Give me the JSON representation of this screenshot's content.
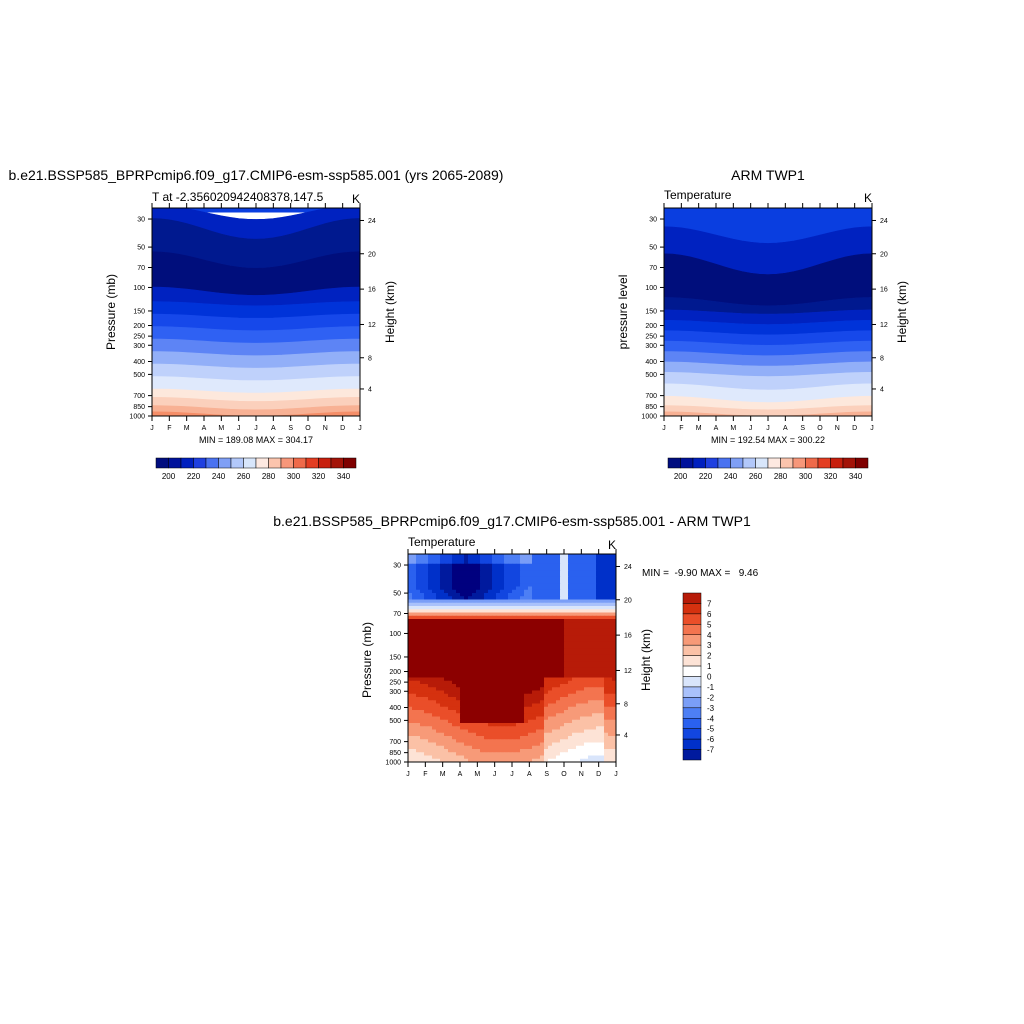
{
  "colors": {
    "model_bands": [
      "#000d7f",
      "#00129b",
      "#0020bf",
      "#1f40e0",
      "#4a72f0",
      "#7f9ff5",
      "#b2c8fa",
      "#d8e6fb",
      "#fde9e1",
      "#fbc4ad",
      "#f7977a",
      "#ef6a4a",
      "#e33d22",
      "#c71f0d",
      "#a31308",
      "#7f0000"
    ],
    "diff_bands": [
      "#00007f",
      "#001a9e",
      "#0030c9",
      "#1246e0",
      "#2a61ef",
      "#4d7ff5",
      "#7a9ef7",
      "#a9c1fb",
      "#d9e5fb",
      "#ffffff",
      "#fde3d6",
      "#fbc1a6",
      "#f79a78",
      "#f3744f",
      "#ea4e29",
      "#d5310f",
      "#b71b08",
      "#8c0000"
    ]
  },
  "chart_data": [
    {
      "type": "heatmap",
      "title": "b.e21.BSSP585_BPRPcmip6.f09_g17.CMIP6-esm-ssp585.001 (yrs 2065-2089)",
      "subtitle_left": "T at -2.356020942408378,147.5",
      "subtitle_right": "K",
      "ylabel": "Pressure (mb)",
      "ylabel_right": "Height (km)",
      "x_ticks": [
        "J",
        "F",
        "M",
        "A",
        "M",
        "J",
        "J",
        "A",
        "S",
        "O",
        "N",
        "D",
        "J"
      ],
      "y_ticks": [
        "30",
        "50",
        "70",
        "100",
        "150",
        "200",
        "250",
        "300",
        "400",
        "500",
        "700",
        "850",
        "1000"
      ],
      "y_right_ticks": [
        "24",
        "20",
        "16",
        "12",
        "8",
        "4"
      ],
      "stats": "MIN = 189.08 MAX = 304.17",
      "colorbar_labels": [
        "200",
        "220",
        "240",
        "260",
        "280",
        "300",
        "320",
        "340"
      ],
      "contour_levels": [
        195,
        200,
        210,
        220,
        230,
        240,
        250,
        260,
        270,
        280,
        290,
        300
      ],
      "annual_profile": {
        "pressure_mb": [
          1000,
          850,
          700,
          500,
          400,
          300,
          250,
          200,
          150,
          100,
          70,
          50,
          30
        ],
        "temperature_K": [
          301,
          296,
          287,
          270,
          260,
          244,
          235,
          222,
          208,
          193,
          195,
          205,
          218
        ]
      }
    },
    {
      "type": "heatmap",
      "title": "ARM TWP1",
      "subtitle_left": "Temperature",
      "subtitle_right": "K",
      "ylabel": "pressure level",
      "ylabel_right": "Height (km)",
      "x_ticks": [
        "J",
        "F",
        "M",
        "A",
        "M",
        "J",
        "J",
        "A",
        "S",
        "O",
        "N",
        "D",
        "J"
      ],
      "y_ticks": [
        "30",
        "50",
        "70",
        "100",
        "150",
        "200",
        "250",
        "300",
        "400",
        "500",
        "700",
        "850",
        "1000"
      ],
      "y_right_ticks": [
        "24",
        "20",
        "16",
        "12",
        "8",
        "4"
      ],
      "stats": "MIN = 192.54 MAX = 300.22",
      "colorbar_labels": [
        "200",
        "220",
        "240",
        "260",
        "280",
        "300",
        "320",
        "340"
      ],
      "contour_levels": [
        195,
        200,
        210,
        220,
        230,
        240,
        250,
        260,
        270,
        280,
        290,
        300
      ],
      "annual_profile": {
        "pressure_mb": [
          1000,
          850,
          700,
          500,
          400,
          300,
          250,
          200,
          150,
          100,
          70,
          50,
          30
        ],
        "temperature_K": [
          299,
          293,
          284,
          267,
          255,
          240,
          230,
          218,
          205,
          194,
          196,
          205,
          213
        ]
      }
    },
    {
      "type": "heatmap",
      "title": "b.e21.BSSP585_BPRPcmip6.f09_g17.CMIP6-esm-ssp585.001 - ARM TWP1",
      "subtitle_left": "Temperature",
      "subtitle_right": "K",
      "ylabel": "Pressure (mb)",
      "ylabel_right": "Height (km)",
      "x_ticks": [
        "J",
        "F",
        "M",
        "A",
        "M",
        "J",
        "J",
        "A",
        "S",
        "O",
        "N",
        "D",
        "J"
      ],
      "y_ticks": [
        "30",
        "50",
        "70",
        "100",
        "150",
        "200",
        "250",
        "300",
        "400",
        "500",
        "700",
        "850",
        "1000"
      ],
      "y_right_ticks": [
        "24",
        "20",
        "16",
        "12",
        "8",
        "4"
      ],
      "stats": "MIN =  -9.90 MAX =   9.46",
      "colorbar_labels": [
        "7",
        "6",
        "5",
        "4",
        "3",
        "2",
        "1",
        "0",
        "-1",
        "-2",
        "-3",
        "-4",
        "-5",
        "-6",
        "-7"
      ],
      "contour_levels": [
        -7,
        -6,
        -5,
        -4,
        -3,
        -2,
        -1,
        0,
        1,
        2,
        3,
        4,
        5,
        6,
        7
      ]
    }
  ]
}
